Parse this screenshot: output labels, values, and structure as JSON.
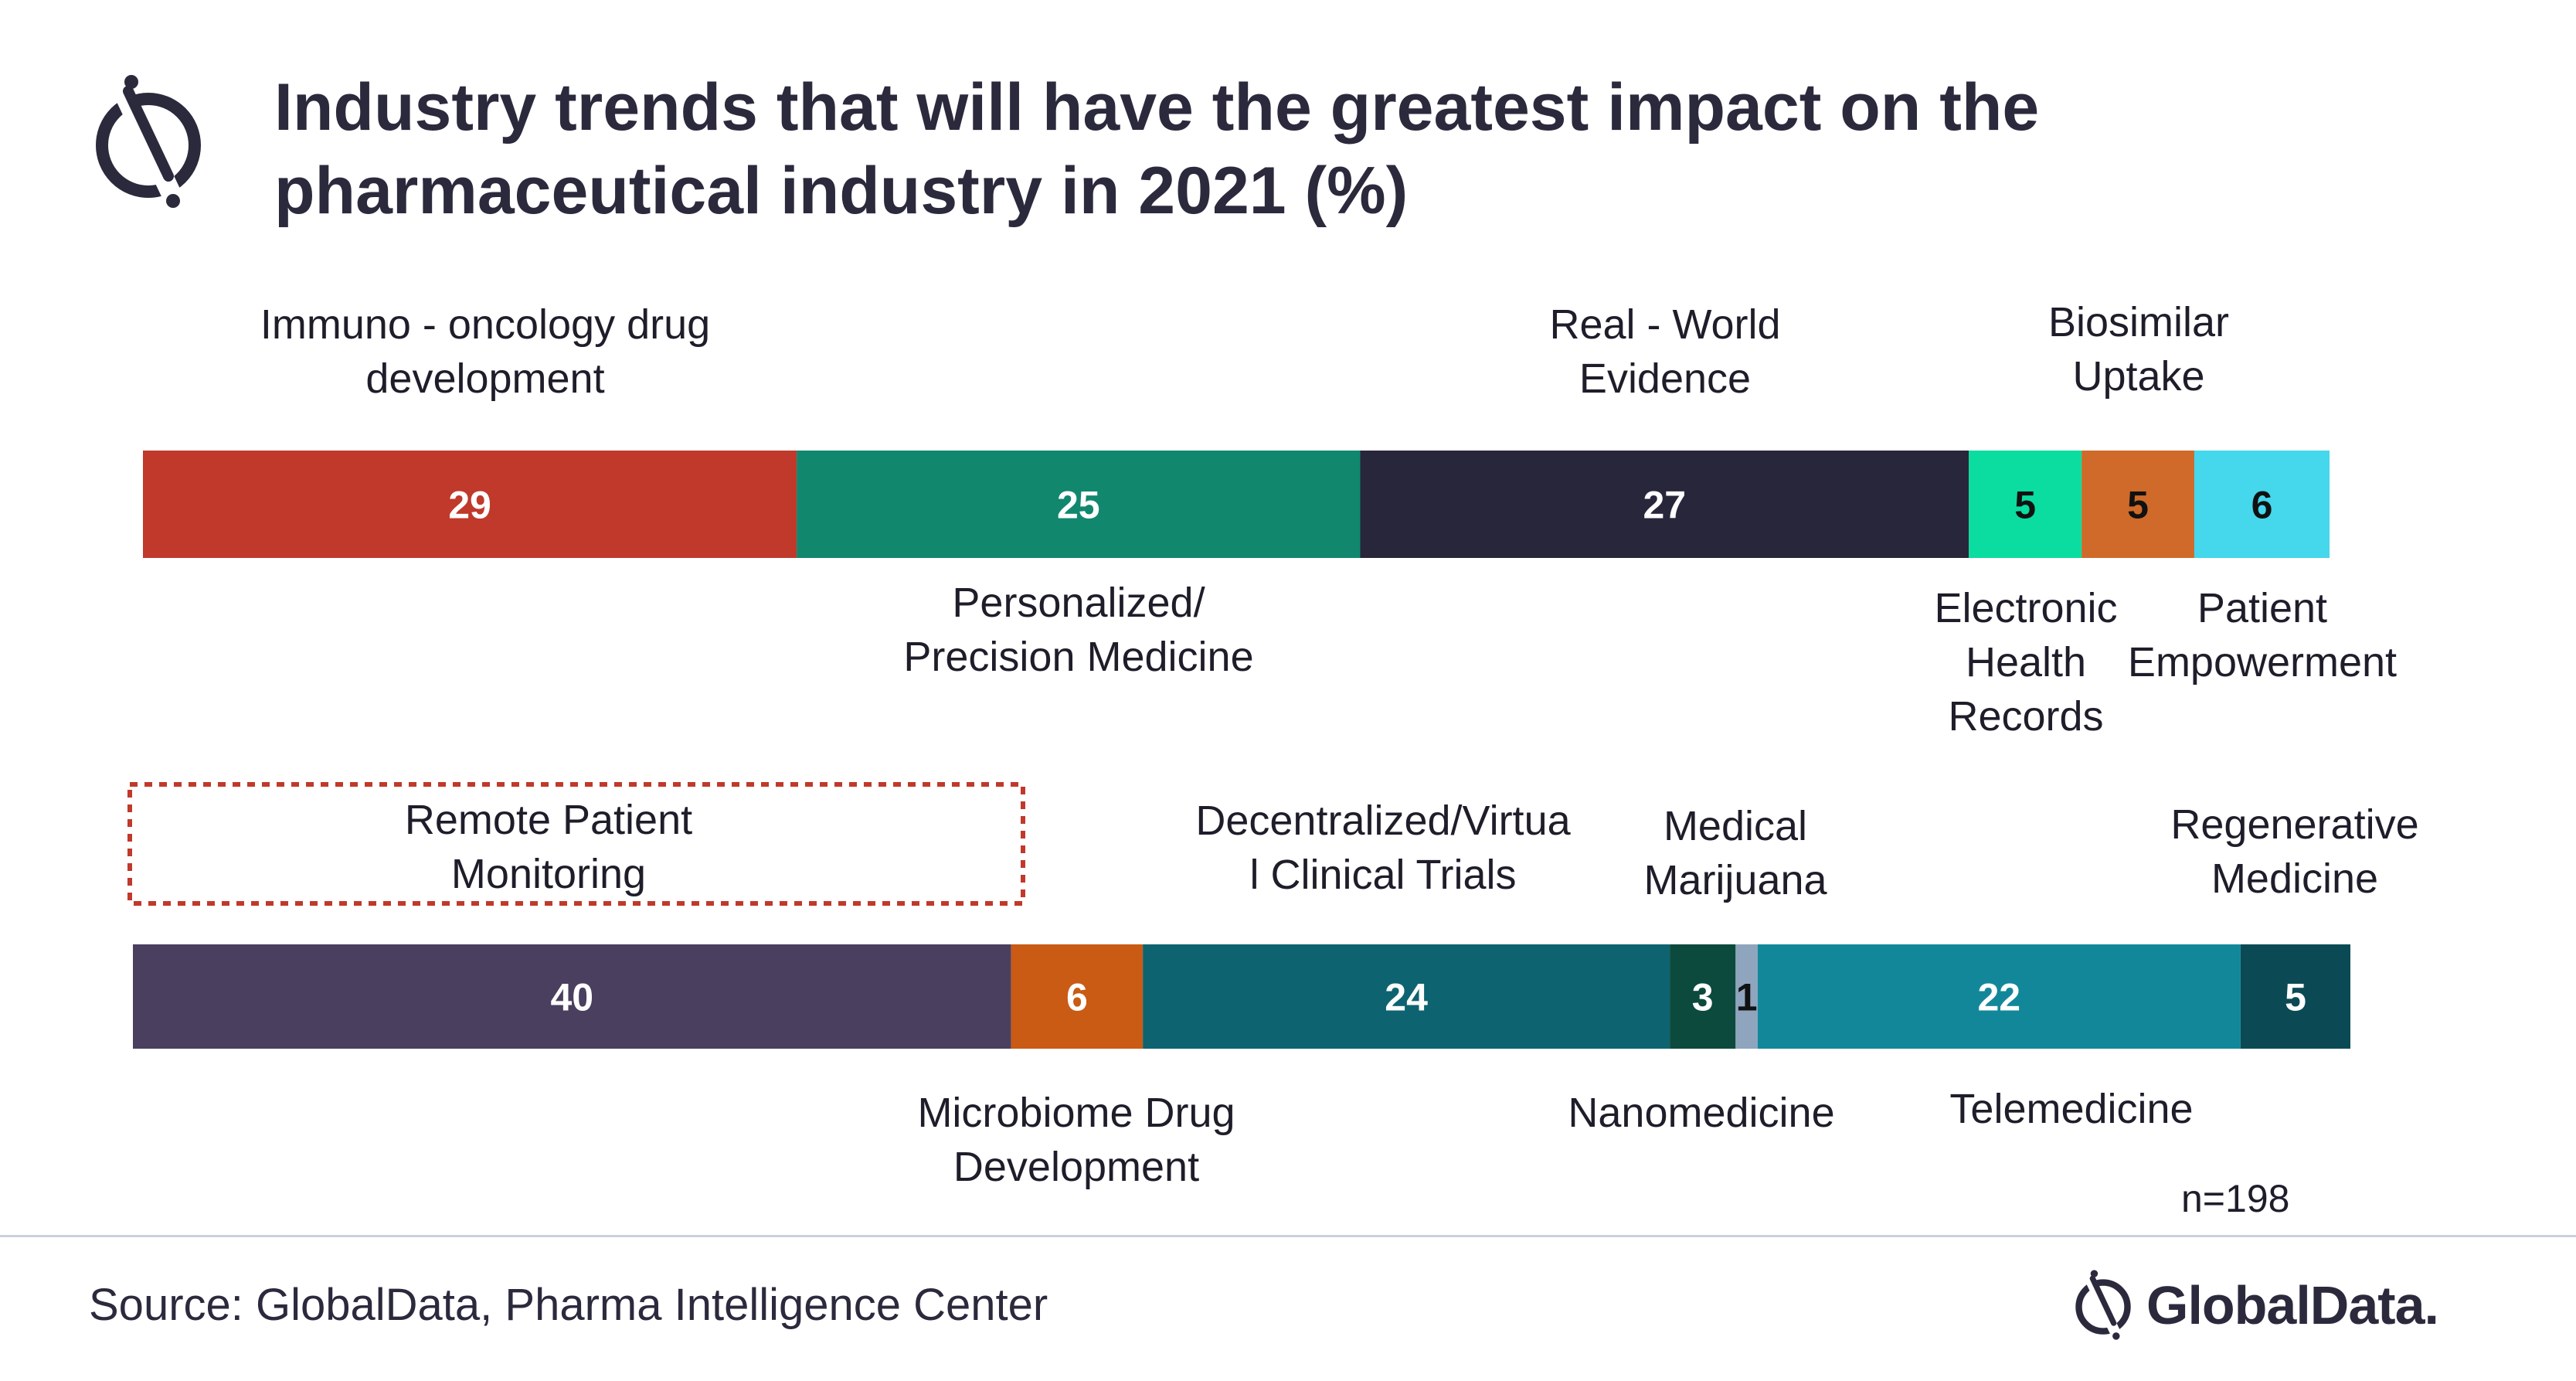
{
  "header": {
    "title_line1": "Industry trends that will have the greatest impact on the",
    "title_line2": "pharmaceutical industry in 2021 (%)",
    "logo_icon": "globaldata-mark-icon"
  },
  "chart_data": [
    {
      "type": "bar",
      "orientation": "horizontal-stacked",
      "unit": "%",
      "series": [
        {
          "name": "Immuno - oncology drug development",
          "value": 29,
          "color": "#c0392b"
        },
        {
          "name": "Personalized/ Precision Medicine",
          "value": 25,
          "color": "#11876e"
        },
        {
          "name": "Real - World Evidence",
          "value": 27,
          "color": "#28263a"
        },
        {
          "name": "Electronic Health Records",
          "value": 5,
          "color": "#0add9f"
        },
        {
          "name": "Biosimilar Uptake",
          "value": 5,
          "color": "#cf6a2a"
        },
        {
          "name": "Patient Empowerment",
          "value": 6,
          "color": "#45d7ec"
        }
      ]
    },
    {
      "type": "bar",
      "orientation": "horizontal-stacked",
      "unit": "%",
      "series": [
        {
          "name": "Remote Patient Monitoring",
          "value": 40,
          "color": "#4a3f5f"
        },
        {
          "name": "Microbiome Drug Development",
          "value": 6,
          "color": "#c95b14"
        },
        {
          "name": "Decentralized/Virtual Clinical Trials",
          "value": 24,
          "color": "#0d6470"
        },
        {
          "name": "Medical Marijuana",
          "value": 3,
          "color": "#0c4a3e"
        },
        {
          "name": "Nanomedicine",
          "value": 1,
          "color": "#8fa5be"
        },
        {
          "name": "Telemedicine",
          "value": 22,
          "color": "#13879a"
        },
        {
          "name": "Regenerative Medicine",
          "value": 5,
          "color": "#0b4a55"
        }
      ]
    }
  ],
  "labels": {
    "immuno": "Immuno - oncology drug\ndevelopment",
    "personalized": "Personalized/\nPrecision Medicine",
    "rwe": "Real - World\nEvidence",
    "ehr": "Electronic\nHealth\nRecords",
    "biosimilar": "Biosimilar\nUptake",
    "empowerment": "Patient\nEmpowerment",
    "remote": "Remote Patient\nMonitoring",
    "microbiome": "Microbiome Drug\nDevelopment",
    "decentralized": "Decentralized/Virtua\nl Clinical Trials",
    "marijuana": "Medical\nMarijuana",
    "nanomedicine": "Nanomedicine",
    "telemedicine": "Telemedicine",
    "regenerative": "Regenerative\nMedicine"
  },
  "note": "n=198",
  "footer": {
    "source": "Source: GlobalData, Pharma Intelligence Center",
    "brand_name": "GlobalData.",
    "brand_icon": "globaldata-mark-icon"
  }
}
